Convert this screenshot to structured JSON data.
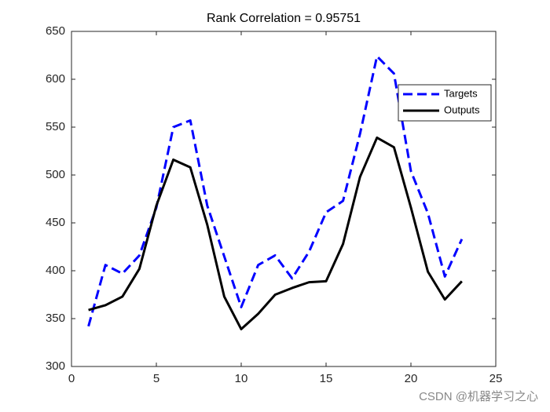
{
  "chart_data": {
    "type": "line",
    "title": "Rank Correlation = 0.95751",
    "x": [
      1,
      2,
      3,
      4,
      5,
      6,
      7,
      8,
      9,
      10,
      11,
      12,
      13,
      14,
      15,
      16,
      17,
      18,
      19,
      20,
      21,
      22,
      23
    ],
    "series": [
      {
        "name": "Targets",
        "color": "#0000ff",
        "dash": "dashed",
        "values": [
          342,
          406,
          397,
          416,
          466,
          550,
          557,
          468,
          415,
          362,
          406,
          416,
          392,
          420,
          461,
          473,
          543,
          624,
          606,
          504,
          460,
          394,
          433
        ]
      },
      {
        "name": "Outputs",
        "color": "#000000",
        "dash": "solid",
        "values": [
          359,
          364,
          373,
          402,
          468,
          516,
          508,
          448,
          373,
          339,
          355,
          375,
          382,
          388,
          389,
          428,
          498,
          539,
          529,
          466,
          399,
          370,
          389
        ]
      }
    ],
    "xlim": [
      0,
      25
    ],
    "xticks": [
      0,
      5,
      10,
      15,
      20,
      25
    ],
    "ylim": [
      300,
      650
    ],
    "yticks": [
      300,
      350,
      400,
      450,
      500,
      550,
      600,
      650
    ],
    "grid": false,
    "legend": "northeast",
    "watermark": "CSDN @机器学习之心"
  }
}
